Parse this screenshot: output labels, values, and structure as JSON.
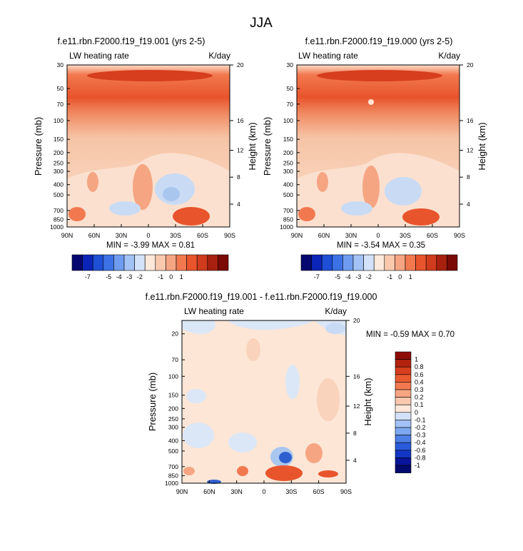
{
  "figure_title": "JJA",
  "colors": {
    "shading_top": "#e8542c",
    "shading_mid": "#f6c4a6",
    "shading_low": "#fde6d6",
    "cool": "#a9c6ef",
    "cool_deep": "#2f5fcf",
    "diff_bg": "#fde6d6"
  },
  "chart_data": [
    {
      "type": "heatmap",
      "title": "f.e11.rbn.F2000.f19_f19.001 (yrs 2-5)",
      "left_label": "LW heating rate",
      "right_label": "K/day",
      "ylabel": "Pressure (mb)",
      "y2label": "Height (km)",
      "x_ticks": [
        "90N",
        "60N",
        "30N",
        "0",
        "30S",
        "60S",
        "90S"
      ],
      "y_ticks": [
        "30",
        "50",
        "70",
        "100",
        "150",
        "200",
        "250",
        "300",
        "400",
        "500",
        "700",
        "850",
        "1000"
      ],
      "y2_ticks": [
        "20",
        "16",
        "12",
        "8",
        "4"
      ],
      "stats": "MIN =  -3.99   MAX =  0.81",
      "min": -3.99,
      "max": 0.81,
      "colorbar_ticks": [
        "-7",
        "-5",
        "-4",
        "-3",
        "-2",
        "-1",
        "0",
        "1"
      ]
    },
    {
      "type": "heatmap",
      "title": "f.e11.rbn.F2000.f19_f19.000 (yrs 2-5)",
      "left_label": "LW heating rate",
      "right_label": "K/day",
      "ylabel": "Pressure (mb)",
      "y2label": "Height (km)",
      "x_ticks": [
        "90N",
        "60N",
        "30N",
        "0",
        "30S",
        "60S",
        "90S"
      ],
      "y_ticks": [
        "30",
        "50",
        "70",
        "100",
        "150",
        "200",
        "250",
        "300",
        "400",
        "500",
        "700",
        "850",
        "1000"
      ],
      "y2_ticks": [
        "20",
        "16",
        "12",
        "8",
        "4"
      ],
      "stats": "MIN =  -3.54   MAX =  0.35",
      "min": -3.54,
      "max": 0.35,
      "colorbar_ticks": [
        "-7",
        "-5",
        "-4",
        "-3",
        "-2",
        "-1",
        "0",
        "1"
      ]
    },
    {
      "type": "heatmap",
      "title": "f.e11.rbn.F2000.f19_f19.001 - f.e11.rbn.F2000.f19_f19.000",
      "left_label": "LW heating rate",
      "right_label": "K/day",
      "ylabel": "Pressure (mb)",
      "y2label": "Height (km)",
      "x_ticks": [
        "90N",
        "60N",
        "30N",
        "0",
        "30S",
        "60S",
        "90S"
      ],
      "y_ticks": [
        "20",
        "70",
        "100",
        "150",
        "200",
        "250",
        "300",
        "400",
        "500",
        "700",
        "850",
        "1000"
      ],
      "y2_ticks": [
        "20",
        "16",
        "12",
        "8",
        "4"
      ],
      "stats": "MIN =  -0.59   MAX =  0.70",
      "min": -0.59,
      "max": 0.7,
      "colorbar_ticks": [
        "1",
        "0.8",
        "0.6",
        "0.4",
        "0.3",
        "0.2",
        "0.1",
        "0",
        "-0.1",
        "-0.2",
        "-0.3",
        "-0.4",
        "-0.6",
        "-0.8",
        "-1"
      ]
    }
  ]
}
